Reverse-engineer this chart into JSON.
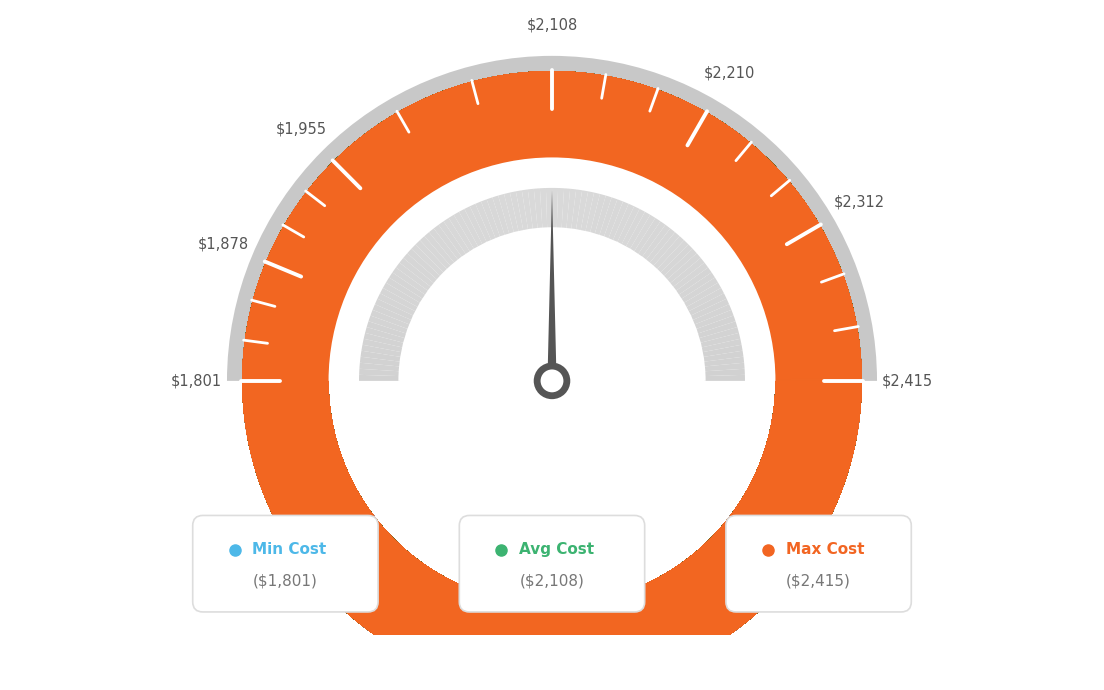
{
  "min_val": 1801,
  "max_val": 2415,
  "avg_val": 2108,
  "tick_labels": [
    "$1,801",
    "$1,878",
    "$1,955",
    "$2,108",
    "$2,210",
    "$2,312",
    "$2,415"
  ],
  "tick_values": [
    1801,
    1878,
    1955,
    2108,
    2210,
    2312,
    2415
  ],
  "legend_labels": [
    "Min Cost",
    "Avg Cost",
    "Max Cost"
  ],
  "legend_values": [
    "($1,801)",
    "($2,108)",
    "($2,415)"
  ],
  "legend_colors": [
    "#4db8e8",
    "#3cb371",
    "#f26522"
  ],
  "bg_color": "#ffffff",
  "color_stops": [
    [
      0.0,
      [
        0.38,
        0.72,
        0.94
      ]
    ],
    [
      0.25,
      [
        0.27,
        0.76,
        0.69
      ]
    ],
    [
      0.5,
      [
        0.24,
        0.72,
        0.5
      ]
    ],
    [
      0.65,
      [
        0.55,
        0.68,
        0.32
      ]
    ],
    [
      0.8,
      [
        0.82,
        0.53,
        0.2
      ]
    ],
    [
      1.0,
      [
        0.95,
        0.4,
        0.13
      ]
    ]
  ]
}
